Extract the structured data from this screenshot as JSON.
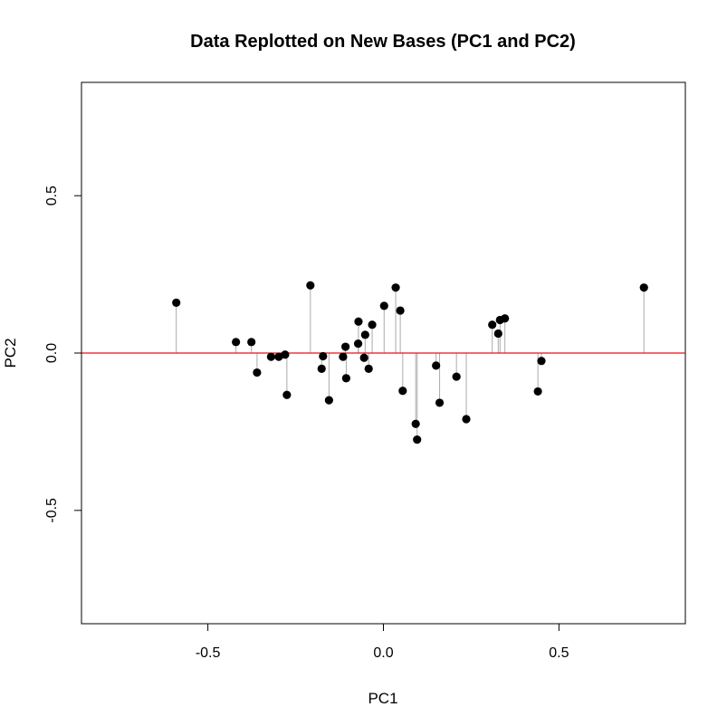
{
  "chart_data": {
    "type": "scatter",
    "title": "Data Replotted on New Bases (PC1 and PC2)",
    "xlabel": "PC1",
    "ylabel": "PC2",
    "xlim": [
      -0.86,
      0.86
    ],
    "ylim": [
      -0.86,
      0.86
    ],
    "x_ticks": [
      -0.5,
      0.0,
      0.5
    ],
    "x_tick_labels": [
      "-0.5",
      "0.0",
      "0.5"
    ],
    "y_ticks": [
      -0.5,
      0.0,
      0.5
    ],
    "y_tick_labels": [
      "-0.5",
      "0.0",
      "0.5"
    ],
    "reference_line": {
      "y": 0,
      "color": "#e8121a"
    },
    "point_color": "#000000",
    "stem_color": "#aaaaaa",
    "grid": false,
    "points": [
      {
        "x": -0.59,
        "y": 0.16
      },
      {
        "x": -0.42,
        "y": 0.035
      },
      {
        "x": -0.376,
        "y": 0.035
      },
      {
        "x": -0.36,
        "y": -0.062
      },
      {
        "x": -0.32,
        "y": -0.012
      },
      {
        "x": -0.298,
        "y": -0.012
      },
      {
        "x": -0.28,
        "y": -0.005
      },
      {
        "x": -0.275,
        "y": -0.133
      },
      {
        "x": -0.208,
        "y": 0.215
      },
      {
        "x": -0.176,
        "y": -0.05
      },
      {
        "x": -0.172,
        "y": -0.01
      },
      {
        "x": -0.155,
        "y": -0.15
      },
      {
        "x": -0.115,
        "y": -0.012
      },
      {
        "x": -0.108,
        "y": 0.02
      },
      {
        "x": -0.106,
        "y": -0.08
      },
      {
        "x": -0.072,
        "y": 0.03
      },
      {
        "x": -0.071,
        "y": 0.1
      },
      {
        "x": -0.055,
        "y": -0.015
      },
      {
        "x": -0.052,
        "y": 0.058
      },
      {
        "x": -0.042,
        "y": -0.05
      },
      {
        "x": -0.032,
        "y": 0.09
      },
      {
        "x": 0.002,
        "y": 0.15
      },
      {
        "x": 0.035,
        "y": 0.208
      },
      {
        "x": 0.048,
        "y": 0.135
      },
      {
        "x": 0.055,
        "y": -0.12
      },
      {
        "x": 0.092,
        "y": -0.225
      },
      {
        "x": 0.096,
        "y": -0.275
      },
      {
        "x": 0.15,
        "y": -0.04
      },
      {
        "x": 0.16,
        "y": -0.158
      },
      {
        "x": 0.208,
        "y": -0.075
      },
      {
        "x": 0.236,
        "y": -0.21
      },
      {
        "x": 0.31,
        "y": 0.09
      },
      {
        "x": 0.327,
        "y": 0.062
      },
      {
        "x": 0.332,
        "y": 0.105
      },
      {
        "x": 0.346,
        "y": 0.11
      },
      {
        "x": 0.44,
        "y": -0.122
      },
      {
        "x": 0.45,
        "y": -0.025
      },
      {
        "x": 0.742,
        "y": 0.208
      }
    ]
  }
}
